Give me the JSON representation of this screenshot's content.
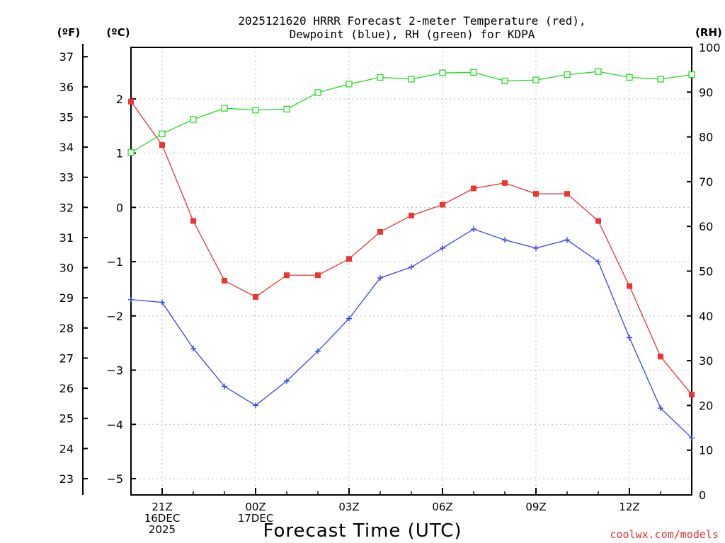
{
  "chart_data": {
    "type": "line",
    "title_lines": [
      "2025121620 HRRR Forecast 2-meter Temperature (red),",
      "Dewpoint (blue), RH (green) for KDPA"
    ],
    "xlabel": "Forecast Time (UTC)",
    "credit": "coolwx.com/models",
    "units": {
      "fahrenheit": "(ºF)",
      "celsius": "(ºC)",
      "rh": "(RH)"
    },
    "x_hours": [
      0,
      1,
      2,
      3,
      4,
      5,
      6,
      7,
      8,
      9,
      10,
      11,
      12,
      13,
      14,
      15,
      16,
      17,
      18
    ],
    "xlim": [
      0,
      18
    ],
    "x_ticks": [
      {
        "hour": 1,
        "lines": [
          "21Z",
          "16DEC",
          "2025"
        ]
      },
      {
        "hour": 4,
        "lines": [
          "00Z",
          "17DEC"
        ]
      },
      {
        "hour": 7,
        "lines": [
          "03Z"
        ]
      },
      {
        "hour": 10,
        "lines": [
          "06Z"
        ]
      },
      {
        "hour": 13,
        "lines": [
          "09Z"
        ]
      },
      {
        "hour": 16,
        "lines": [
          "12Z"
        ]
      }
    ],
    "celsius_axis": {
      "ylim": [
        -5.3,
        2.95
      ],
      "ticks": [
        2,
        1,
        0,
        -1,
        -2,
        -3,
        -4,
        -5
      ],
      "tick_labels": [
        "2",
        "1",
        "0",
        "−1",
        "−2",
        "−3",
        "−4",
        "−5"
      ]
    },
    "fahrenheit_axis": {
      "ticks": [
        37,
        36,
        35,
        34,
        33,
        32,
        31,
        30,
        29,
        28,
        27,
        26,
        25,
        24,
        23
      ]
    },
    "rh_axis": {
      "ylim": [
        0,
        100
      ],
      "ticks": [
        0,
        10,
        20,
        30,
        40,
        50,
        60,
        70,
        80,
        90,
        100
      ]
    },
    "series": [
      {
        "name": "Temperature",
        "unit": "°C",
        "color": "#ee3333",
        "marker": "filled-square",
        "values": [
          1.95,
          1.15,
          -0.25,
          -1.35,
          -1.65,
          -1.25,
          -1.25,
          -0.95,
          -0.45,
          -0.15,
          0.05,
          0.35,
          0.45,
          0.25,
          0.25,
          -0.25,
          -1.45,
          -2.75,
          -3.45
        ]
      },
      {
        "name": "Dewpoint",
        "unit": "°C",
        "color": "#3344ee",
        "marker": "plus",
        "values": [
          -1.7,
          -1.75,
          -2.6,
          -3.3,
          -3.65,
          -3.2,
          -2.65,
          -2.05,
          -1.3,
          -1.1,
          -0.75,
          -0.4,
          -0.6,
          -0.75,
          -0.6,
          -1.0,
          -2.4,
          -3.7,
          -4.25
        ]
      },
      {
        "name": "Relative Humidity",
        "unit": "%",
        "color": "#22dd22",
        "marker": "open-square",
        "axis": "rh",
        "values": [
          76.5,
          80.7,
          83.9,
          86.4,
          86.0,
          86.2,
          89.9,
          91.8,
          93.3,
          92.9,
          94.3,
          94.4,
          92.5,
          92.7,
          93.9,
          94.6,
          93.3,
          92.9,
          93.9
        ]
      }
    ]
  }
}
